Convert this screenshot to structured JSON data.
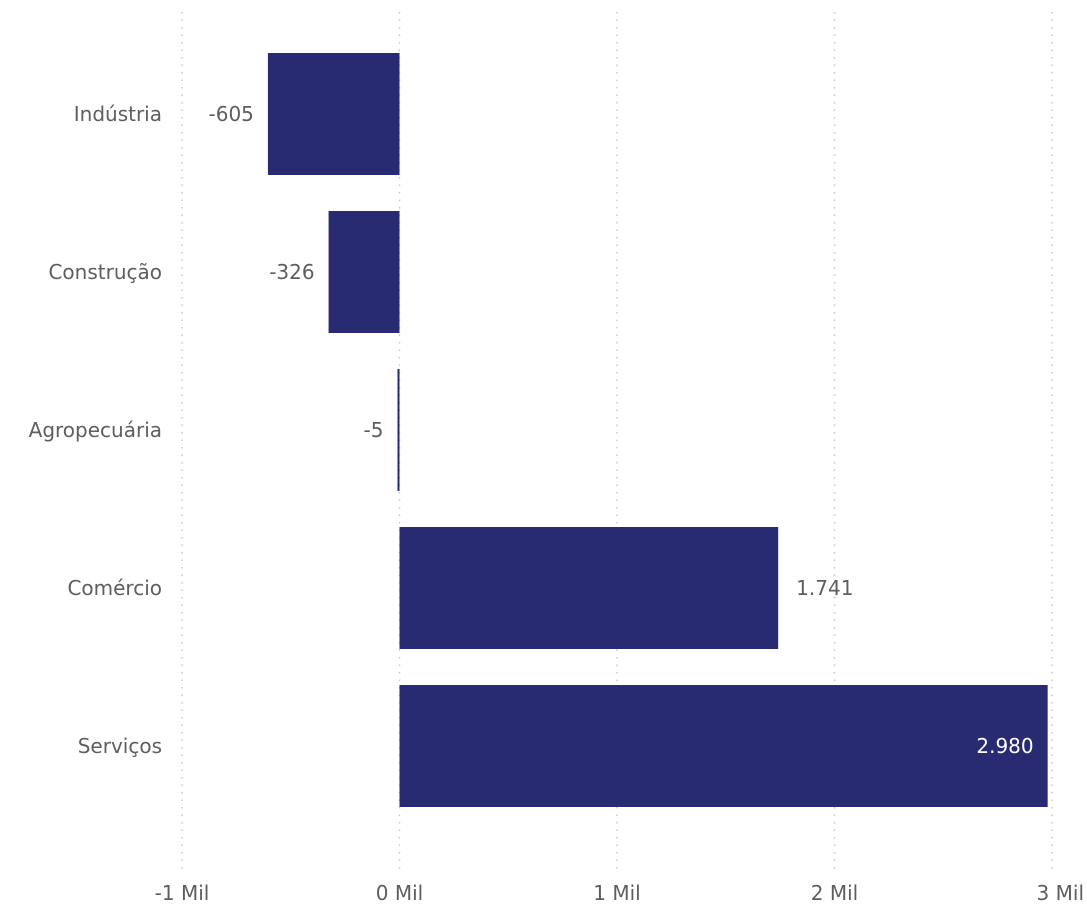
{
  "chart_data": {
    "type": "bar",
    "orientation": "horizontal",
    "categories": [
      "Indústria",
      "Construção",
      "Agropecuária",
      "Comércio",
      "Serviços"
    ],
    "values": [
      -605,
      -326,
      -5,
      1741,
      2980
    ],
    "data_labels": [
      "-605",
      "-326",
      "-5",
      "1.741",
      "2.980"
    ],
    "x_ticks": [
      -1000,
      0,
      1000,
      2000,
      3000
    ],
    "x_tick_labels": [
      "-1 Mil",
      "0 Mil",
      "1 Mil",
      "2 Mil",
      "3 Mil"
    ],
    "xlim": [
      -1000,
      3000
    ],
    "grid": true,
    "legend": "none",
    "bar_color": "#282A72",
    "label_color": "#605E5C",
    "inside_label_color": "#FFFFFF"
  }
}
